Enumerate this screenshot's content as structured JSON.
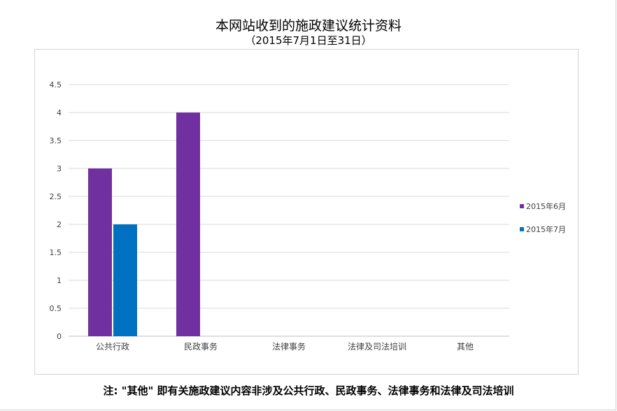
{
  "chart_data": {
    "type": "bar",
    "title": "本网站收到的施政建议统计资料",
    "subtitle": "（2015年7月1日至31日）",
    "categories": [
      "公共行政",
      "民政事务",
      "法律事务",
      "法律及司法培训",
      "其他"
    ],
    "series": [
      {
        "name": "2015年6月",
        "values": [
          3,
          4,
          0,
          0,
          0
        ],
        "color": "#7030a0"
      },
      {
        "name": "2015年7月",
        "values": [
          2,
          0,
          0,
          0,
          0
        ],
        "color": "#0070c0"
      }
    ],
    "ylim": [
      0,
      4.5
    ],
    "yticks": [
      "0",
      "0.5",
      "1",
      "1.5",
      "2",
      "2.5",
      "3",
      "3.5",
      "4",
      "4.5"
    ],
    "grid": true,
    "legend": "right",
    "xlabel": "",
    "ylabel": ""
  },
  "footnote": "注: \"其他\" 即有关施政建议内容非涉及公共行政、民政事务、法律事务和法律及司法培训"
}
